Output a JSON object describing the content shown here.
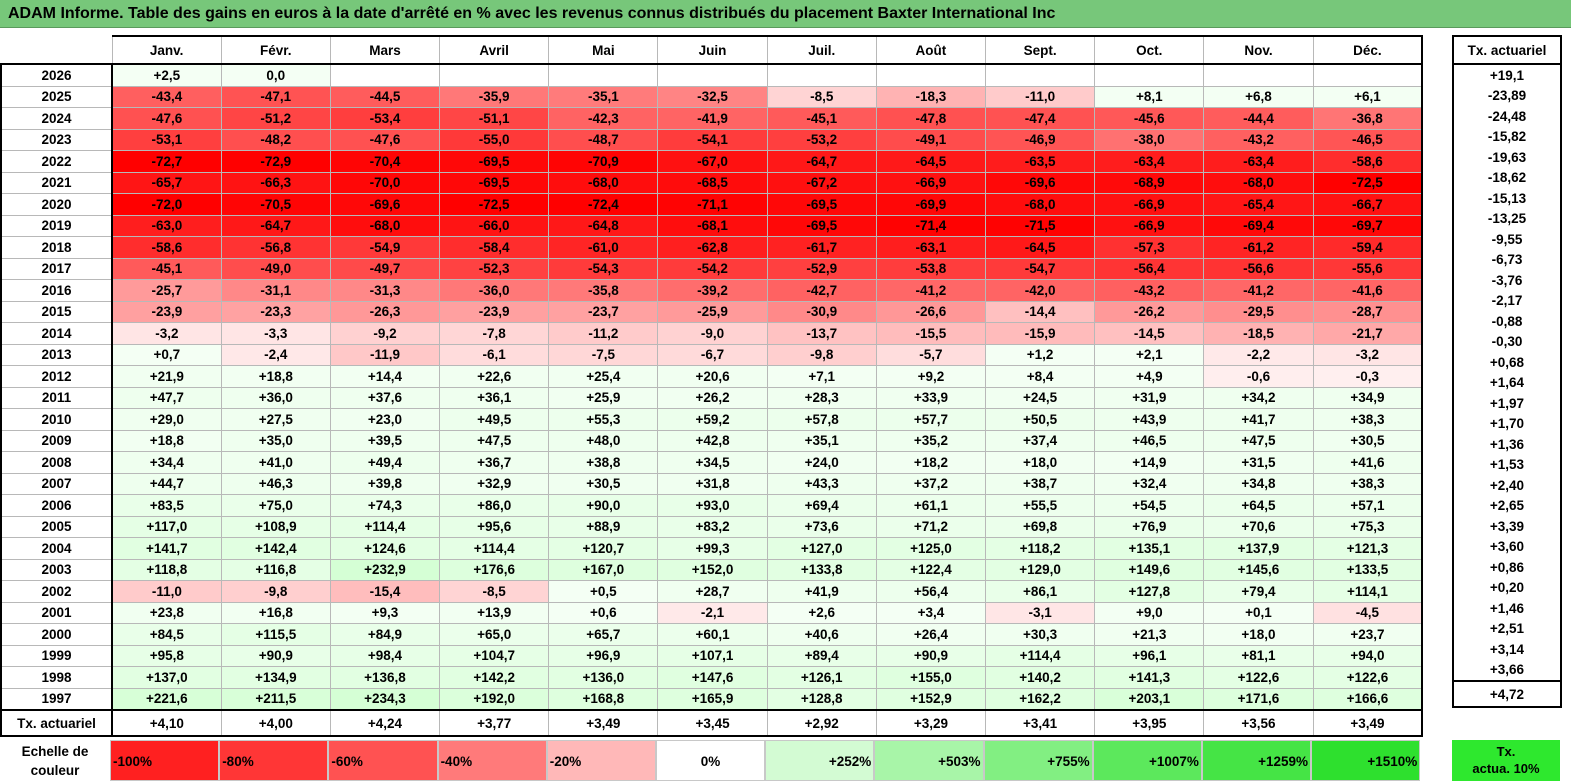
{
  "title": "ADAM Informe. Table des gains en euros à la date d'arrêté en % avec les revenus connus distribués du placement Baxter International Inc",
  "months": [
    "Janv.",
    "Févr.",
    "Mars",
    "Avril",
    "Mai",
    "Juin",
    "Juil.",
    "Août",
    "Sept.",
    "Oct.",
    "Nov.",
    "Déc."
  ],
  "side_header": "Tx. actuariel",
  "rows": [
    {
      "year": "2026",
      "values": [
        "+2,5",
        "0,0",
        "",
        "",
        "",
        "",
        "",
        "",
        "",
        "",
        "",
        ""
      ],
      "rate": "+19,1"
    },
    {
      "year": "2025",
      "values": [
        "-43,4",
        "-47,1",
        "-44,5",
        "-35,9",
        "-35,1",
        "-32,5",
        "-8,5",
        "-18,3",
        "-11,0",
        "+8,1",
        "+6,8",
        "+6,1"
      ],
      "rate": "-23,89"
    },
    {
      "year": "2024",
      "values": [
        "-47,6",
        "-51,2",
        "-53,4",
        "-51,1",
        "-42,3",
        "-41,9",
        "-45,1",
        "-47,8",
        "-47,4",
        "-45,6",
        "-44,4",
        "-36,8"
      ],
      "rate": "-24,48"
    },
    {
      "year": "2023",
      "values": [
        "-53,1",
        "-48,2",
        "-47,6",
        "-55,0",
        "-48,7",
        "-54,1",
        "-53,2",
        "-49,1",
        "-46,9",
        "-38,0",
        "-43,2",
        "-46,5"
      ],
      "rate": "-15,82"
    },
    {
      "year": "2022",
      "values": [
        "-72,7",
        "-72,9",
        "-70,4",
        "-69,5",
        "-70,9",
        "-67,0",
        "-64,7",
        "-64,5",
        "-63,5",
        "-63,4",
        "-63,4",
        "-58,6"
      ],
      "rate": "-19,63"
    },
    {
      "year": "2021",
      "values": [
        "-65,7",
        "-66,3",
        "-70,0",
        "-69,5",
        "-68,0",
        "-68,5",
        "-67,2",
        "-66,9",
        "-69,6",
        "-68,9",
        "-68,0",
        "-72,5"
      ],
      "rate": "-18,62"
    },
    {
      "year": "2020",
      "values": [
        "-72,0",
        "-70,5",
        "-69,6",
        "-72,5",
        "-72,4",
        "-71,1",
        "-69,5",
        "-69,9",
        "-68,0",
        "-66,9",
        "-65,4",
        "-66,7"
      ],
      "rate": "-15,13"
    },
    {
      "year": "2019",
      "values": [
        "-63,0",
        "-64,7",
        "-68,0",
        "-66,0",
        "-64,8",
        "-68,1",
        "-69,5",
        "-71,4",
        "-71,5",
        "-66,9",
        "-69,4",
        "-69,7"
      ],
      "rate": "-13,25"
    },
    {
      "year": "2018",
      "values": [
        "-58,6",
        "-56,8",
        "-54,9",
        "-58,4",
        "-61,0",
        "-62,8",
        "-61,7",
        "-63,1",
        "-64,5",
        "-57,3",
        "-61,2",
        "-59,4"
      ],
      "rate": "-9,55"
    },
    {
      "year": "2017",
      "values": [
        "-45,1",
        "-49,0",
        "-49,7",
        "-52,3",
        "-54,3",
        "-54,2",
        "-52,9",
        "-53,8",
        "-54,7",
        "-56,4",
        "-56,6",
        "-55,6"
      ],
      "rate": "-6,73"
    },
    {
      "year": "2016",
      "values": [
        "-25,7",
        "-31,1",
        "-31,3",
        "-36,0",
        "-35,8",
        "-39,2",
        "-42,7",
        "-41,2",
        "-42,0",
        "-43,2",
        "-41,2",
        "-41,6"
      ],
      "rate": "-3,76"
    },
    {
      "year": "2015",
      "values": [
        "-23,9",
        "-23,3",
        "-26,3",
        "-23,9",
        "-23,7",
        "-25,9",
        "-30,9",
        "-26,6",
        "-14,4",
        "-26,2",
        "-29,5",
        "-28,7"
      ],
      "rate": "-2,17"
    },
    {
      "year": "2014",
      "values": [
        "-3,2",
        "-3,3",
        "-9,2",
        "-7,8",
        "-11,2",
        "-9,0",
        "-13,7",
        "-15,5",
        "-15,9",
        "-14,5",
        "-18,5",
        "-21,7"
      ],
      "rate": "-0,88"
    },
    {
      "year": "2013",
      "values": [
        "+0,7",
        "-2,4",
        "-11,9",
        "-6,1",
        "-7,5",
        "-6,7",
        "-9,8",
        "-5,7",
        "+1,2",
        "+2,1",
        "-2,2",
        "-3,2"
      ],
      "rate": "-0,30"
    },
    {
      "year": "2012",
      "values": [
        "+21,9",
        "+18,8",
        "+14,4",
        "+22,6",
        "+25,4",
        "+20,6",
        "+7,1",
        "+9,2",
        "+8,4",
        "+4,9",
        "-0,6",
        "-0,3"
      ],
      "rate": "+0,68"
    },
    {
      "year": "2011",
      "values": [
        "+47,7",
        "+36,0",
        "+37,6",
        "+36,1",
        "+25,9",
        "+26,2",
        "+28,3",
        "+33,9",
        "+24,5",
        "+31,9",
        "+34,2",
        "+34,9"
      ],
      "rate": "+1,64"
    },
    {
      "year": "2010",
      "values": [
        "+29,0",
        "+27,5",
        "+23,0",
        "+49,5",
        "+55,3",
        "+59,2",
        "+57,8",
        "+57,7",
        "+50,5",
        "+43,9",
        "+41,7",
        "+38,3"
      ],
      "rate": "+1,97"
    },
    {
      "year": "2009",
      "values": [
        "+18,8",
        "+35,0",
        "+39,5",
        "+47,5",
        "+48,0",
        "+42,8",
        "+35,1",
        "+35,2",
        "+37,4",
        "+46,5",
        "+47,5",
        "+30,5"
      ],
      "rate": "+1,70"
    },
    {
      "year": "2008",
      "values": [
        "+34,4",
        "+41,0",
        "+49,4",
        "+36,7",
        "+38,8",
        "+34,5",
        "+24,0",
        "+18,2",
        "+18,0",
        "+14,9",
        "+31,5",
        "+41,6"
      ],
      "rate": "+1,36"
    },
    {
      "year": "2007",
      "values": [
        "+44,7",
        "+46,3",
        "+39,8",
        "+32,9",
        "+30,5",
        "+31,8",
        "+43,3",
        "+37,2",
        "+38,7",
        "+32,4",
        "+34,8",
        "+38,3"
      ],
      "rate": "+1,53"
    },
    {
      "year": "2006",
      "values": [
        "+83,5",
        "+75,0",
        "+74,3",
        "+86,0",
        "+90,0",
        "+93,0",
        "+69,4",
        "+61,1",
        "+55,5",
        "+54,5",
        "+64,5",
        "+57,1"
      ],
      "rate": "+2,40"
    },
    {
      "year": "2005",
      "values": [
        "+117,0",
        "+108,9",
        "+114,4",
        "+95,6",
        "+88,9",
        "+83,2",
        "+73,6",
        "+71,2",
        "+69,8",
        "+76,9",
        "+70,6",
        "+75,3"
      ],
      "rate": "+2,65"
    },
    {
      "year": "2004",
      "values": [
        "+141,7",
        "+142,4",
        "+124,6",
        "+114,4",
        "+120,7",
        "+99,3",
        "+127,0",
        "+125,0",
        "+118,2",
        "+135,1",
        "+137,9",
        "+121,3"
      ],
      "rate": "+3,39"
    },
    {
      "year": "2003",
      "values": [
        "+118,8",
        "+116,8",
        "+232,9",
        "+176,6",
        "+167,0",
        "+152,0",
        "+133,8",
        "+122,4",
        "+129,0",
        "+149,6",
        "+145,6",
        "+133,5"
      ],
      "rate": "+3,60"
    },
    {
      "year": "2002",
      "values": [
        "-11,0",
        "-9,8",
        "-15,4",
        "-8,5",
        "+0,5",
        "+28,7",
        "+41,9",
        "+56,4",
        "+86,1",
        "+127,8",
        "+79,4",
        "+114,1"
      ],
      "rate": "+0,86"
    },
    {
      "year": "2001",
      "values": [
        "+23,8",
        "+16,8",
        "+9,3",
        "+13,9",
        "+0,6",
        "-2,1",
        "+2,6",
        "+3,4",
        "-3,1",
        "+9,0",
        "+0,1",
        "-4,5"
      ],
      "rate": "+0,20"
    },
    {
      "year": "2000",
      "values": [
        "+84,5",
        "+115,5",
        "+84,9",
        "+65,0",
        "+65,7",
        "+60,1",
        "+40,6",
        "+26,4",
        "+30,3",
        "+21,3",
        "+18,0",
        "+23,7"
      ],
      "rate": "+1,46"
    },
    {
      "year": "1999",
      "values": [
        "+95,8",
        "+90,9",
        "+98,4",
        "+104,7",
        "+96,9",
        "+107,1",
        "+89,4",
        "+90,9",
        "+114,4",
        "+96,1",
        "+81,1",
        "+94,0"
      ],
      "rate": "+2,51"
    },
    {
      "year": "1998",
      "values": [
        "+137,0",
        "+134,9",
        "+136,8",
        "+142,2",
        "+136,0",
        "+147,6",
        "+126,1",
        "+155,0",
        "+140,2",
        "+141,3",
        "+122,6",
        "+122,6"
      ],
      "rate": "+3,14"
    },
    {
      "year": "1997",
      "values": [
        "+221,6",
        "+211,5",
        "+234,3",
        "+192,0",
        "+168,8",
        "+165,9",
        "+128,8",
        "+152,9",
        "+162,2",
        "+203,1",
        "+171,6",
        "+166,6"
      ],
      "rate": "+3,66"
    }
  ],
  "footer": {
    "label": "Tx. actuariel",
    "values": [
      "+4,10",
      "+4,00",
      "+4,24",
      "+3,77",
      "+3,49",
      "+3,45",
      "+2,92",
      "+3,29",
      "+3,41",
      "+3,95",
      "+3,56",
      "+3,49"
    ],
    "rate": "+4,72"
  },
  "legend": {
    "label_line1": "Echelle de",
    "label_line2": "couleur",
    "swatches": [
      {
        "text": "-100%",
        "color": "#ff2020",
        "kind": "neg"
      },
      {
        "text": "-80%",
        "color": "#ff3636",
        "kind": "neg"
      },
      {
        "text": "-60%",
        "color": "#ff5252",
        "kind": "neg"
      },
      {
        "text": "-40%",
        "color": "#ff7a7a",
        "kind": "neg"
      },
      {
        "text": "-20%",
        "color": "#ffb8b8",
        "kind": "neg"
      },
      {
        "text": "0%",
        "color": "#ffffff",
        "kind": "zero"
      },
      {
        "text": "+252%",
        "color": "#d3fbd3",
        "kind": "pos"
      },
      {
        "text": "+503%",
        "color": "#a8f5a8",
        "kind": "pos"
      },
      {
        "text": "+755%",
        "color": "#82ef82",
        "kind": "pos"
      },
      {
        "text": "+1007%",
        "color": "#5ce85c",
        "kind": "pos"
      },
      {
        "text": "+1259%",
        "color": "#45e445",
        "kind": "pos"
      },
      {
        "text": "+1510%",
        "color": "#2ee02e",
        "kind": "pos"
      }
    ],
    "side_line1": "Tx.",
    "side_line2": "actua. 10%",
    "side_color": "#2ee82e"
  },
  "colors": {
    "title_bg": "#77c77a",
    "negative_max": "#ff0000",
    "positive_max": "#2ee02e"
  }
}
